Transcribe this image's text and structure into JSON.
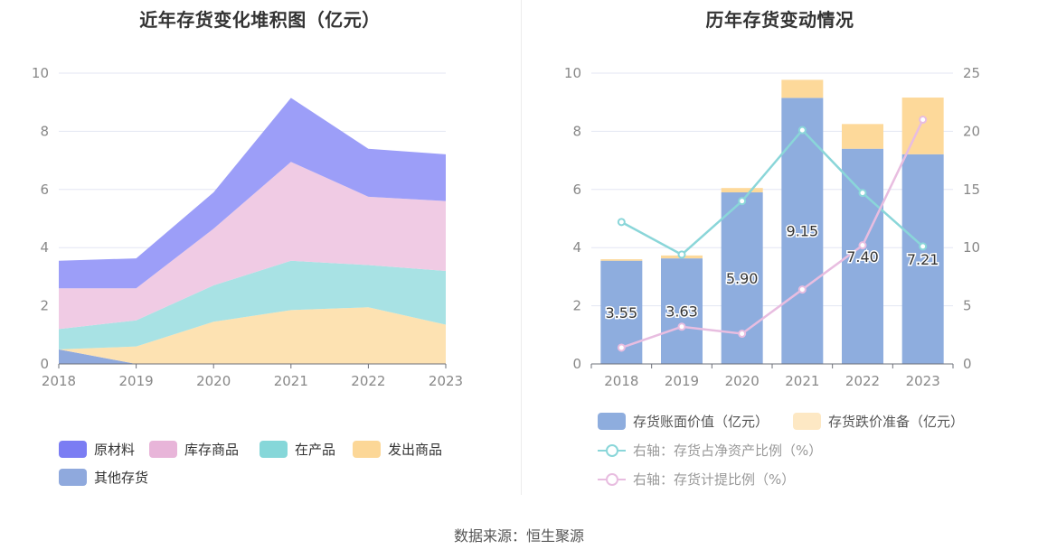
{
  "source": "数据来源：恒生聚源",
  "chart_data": [
    {
      "type": "area",
      "stacked": true,
      "title": "近年存货变化堆积图（亿元）",
      "categories": [
        "2018",
        "2019",
        "2020",
        "2021",
        "2022",
        "2023"
      ],
      "ylim": [
        0,
        10
      ],
      "yticks": [
        0,
        2,
        4,
        6,
        8,
        10
      ],
      "series": [
        {
          "name": "其他存货",
          "color": "#8fa9dd",
          "values": [
            0.5,
            0.0,
            0.0,
            0.0,
            0.0,
            0.0
          ]
        },
        {
          "name": "发出商品",
          "color": "#fde2b2",
          "values": [
            0.0,
            0.6,
            1.45,
            1.85,
            1.95,
            1.35
          ]
        },
        {
          "name": "在产品",
          "color": "#a8e2e4",
          "values": [
            0.7,
            0.9,
            1.25,
            1.7,
            1.45,
            1.85
          ]
        },
        {
          "name": "库存商品",
          "color": "#f0cbe4",
          "values": [
            1.4,
            1.1,
            1.95,
            3.4,
            2.35,
            2.4
          ]
        },
        {
          "name": "原材料",
          "color": "#9c9ef8",
          "values": [
            0.95,
            1.03,
            1.25,
            2.2,
            1.65,
            1.61
          ]
        }
      ],
      "legend": [
        {
          "name": "原材料",
          "color": "#7b7df3"
        },
        {
          "name": "库存商品",
          "color": "#e8b5d9"
        },
        {
          "name": "在产品",
          "color": "#86d7d9"
        },
        {
          "name": "发出商品",
          "color": "#fcd797"
        },
        {
          "name": "其他存货",
          "color": "#8fa9dd"
        }
      ]
    },
    {
      "type": "bar",
      "title": "历年存货变动情况",
      "categories": [
        "2018",
        "2019",
        "2020",
        "2021",
        "2022",
        "2023"
      ],
      "ylim": [
        0,
        10
      ],
      "yticks": [
        0,
        2,
        4,
        6,
        8,
        10
      ],
      "y2lim": [
        0,
        25
      ],
      "y2ticks": [
        0,
        5,
        10,
        15,
        20,
        25
      ],
      "bars": [
        {
          "name": "存货账面价值（亿元）",
          "color": "#8eadde",
          "values": [
            3.55,
            3.63,
            5.9,
            9.15,
            7.4,
            7.21
          ],
          "labels": [
            "3.55",
            "3.63",
            "5.90",
            "9.15",
            "7.40",
            "7.21"
          ]
        },
        {
          "name": "存货跌价准备（亿元）",
          "color": "#fdd99a",
          "legend_color": "#fde8c4",
          "values": [
            0.05,
            0.1,
            0.15,
            0.62,
            0.85,
            1.95
          ]
        }
      ],
      "lines": [
        {
          "name": "右轴：存货占净资产比例（%）",
          "color": "#8ad6d9",
          "values": [
            12.2,
            9.4,
            14.0,
            20.1,
            14.7,
            10.1
          ]
        },
        {
          "name": "右轴：存货计提比例（%）",
          "color": "#e8bde0",
          "values": [
            1.4,
            3.2,
            2.6,
            6.4,
            10.2,
            21.0
          ]
        }
      ]
    }
  ]
}
